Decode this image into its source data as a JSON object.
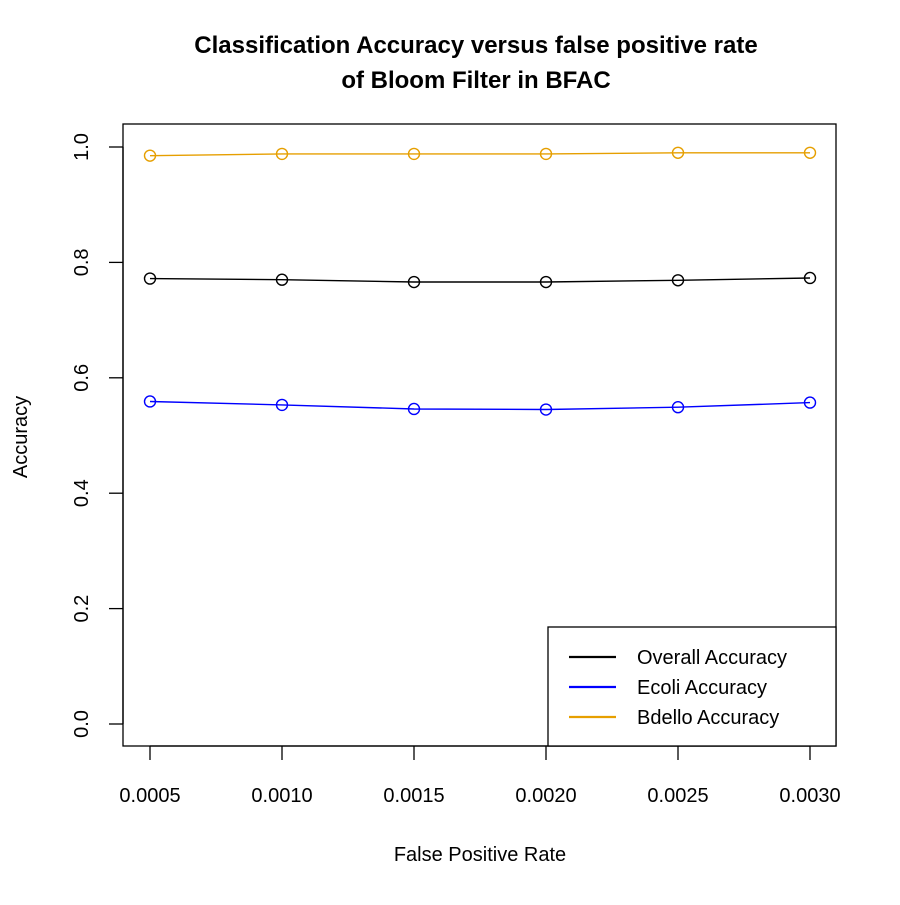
{
  "chart_data": {
    "type": "line",
    "title": [
      "Classification Accuracy versus false positive rate",
      "of Bloom Filter in BFAC"
    ],
    "xlabel": "False Positive Rate",
    "ylabel": "Accuracy",
    "x": [
      0.0005,
      0.001,
      0.0015,
      0.002,
      0.0025,
      0.003
    ],
    "x_tick_labels": [
      "0.0005",
      "0.0010",
      "0.0015",
      "0.0020",
      "0.0025",
      "0.0030"
    ],
    "y_ticks": [
      0.0,
      0.2,
      0.4,
      0.6,
      0.8,
      1.0
    ],
    "y_tick_labels": [
      "0.0",
      "0.2",
      "0.4",
      "0.6",
      "0.8",
      "1.0"
    ],
    "xlim": [
      0.0005,
      0.003
    ],
    "ylim": [
      0.0,
      1.0
    ],
    "grid": false,
    "legend_position": "bottom-right",
    "marker": "open-circle",
    "series": [
      {
        "name": "Overall Accuracy",
        "color": "#000000",
        "values": [
          0.772,
          0.77,
          0.766,
          0.766,
          0.769,
          0.773
        ]
      },
      {
        "name": "Ecoli Accuracy",
        "color": "#0000ff",
        "values": [
          0.559,
          0.553,
          0.546,
          0.545,
          0.549,
          0.557
        ]
      },
      {
        "name": "Bdello Accuracy",
        "color": "#e69f00",
        "values": [
          0.985,
          0.988,
          0.988,
          0.988,
          0.99,
          0.99
        ]
      }
    ]
  }
}
